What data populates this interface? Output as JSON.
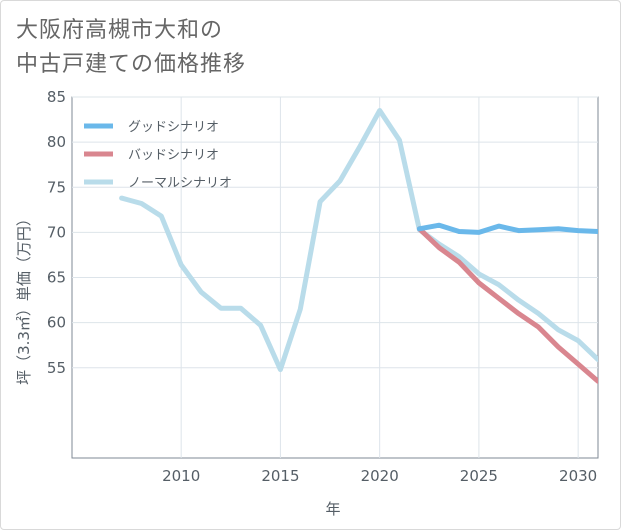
{
  "title": {
    "line1": "大阪府高槻市大和の",
    "line2": "中古戸建ての価格推移"
  },
  "chart_data": {
    "type": "line",
    "xlabel": "年",
    "ylabel": "坪（3.3㎡）単価（万円）",
    "xlim": [
      2004.5,
      2031
    ],
    "ylim": [
      45,
      85
    ],
    "xticks": [
      2010,
      2015,
      2020,
      2025,
      2030
    ],
    "yticks": [
      55,
      60,
      65,
      70,
      75,
      80,
      85
    ],
    "grid": true,
    "legend_position": "top-left",
    "series": [
      {
        "name": "グッドシナリオ",
        "color": "#6ab8ea",
        "x": [
          2022,
          2023,
          2024,
          2025,
          2026,
          2027,
          2028,
          2029,
          2030,
          2031
        ],
        "y": [
          70.4,
          70.8,
          70.1,
          70.0,
          70.7,
          70.2,
          70.3,
          70.4,
          70.2,
          70.1
        ]
      },
      {
        "name": "バッドシナリオ",
        "color": "#d9868f",
        "x": [
          2022,
          2023,
          2024,
          2025,
          2026,
          2027,
          2028,
          2029,
          2030,
          2031
        ],
        "y": [
          70.4,
          68.3,
          66.7,
          64.4,
          62.7,
          61.0,
          59.5,
          57.3,
          55.4,
          53.5
        ]
      },
      {
        "name": "ノーマルシナリオ",
        "color": "#b9dcea",
        "x": [
          2007,
          2008,
          2009,
          2010,
          2011,
          2012,
          2013,
          2014,
          2015,
          2016,
          2017,
          2018,
          2019,
          2020,
          2021,
          2022,
          2023,
          2024,
          2025,
          2026,
          2027,
          2028,
          2029,
          2030,
          2031
        ],
        "y": [
          73.8,
          73.2,
          71.8,
          66.4,
          63.4,
          61.6,
          61.6,
          59.7,
          54.8,
          61.5,
          73.4,
          75.7,
          79.5,
          83.5,
          80.2,
          70.3,
          68.7,
          67.3,
          65.4,
          64.2,
          62.5,
          61.0,
          59.2,
          58.0,
          55.9
        ]
      }
    ]
  }
}
